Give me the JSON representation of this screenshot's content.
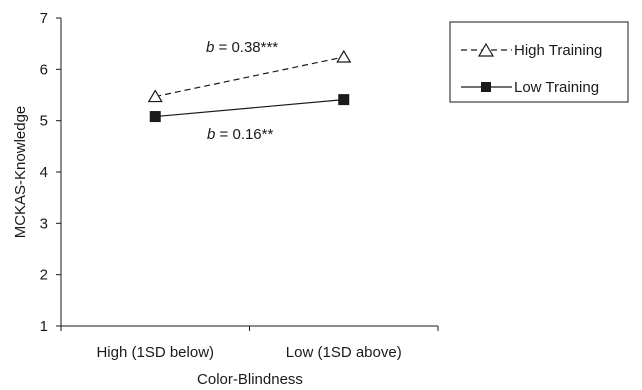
{
  "chart_data": {
    "type": "line",
    "categories": [
      "High (1SD below)",
      "Low (1SD above)"
    ],
    "series": [
      {
        "name": "High Training",
        "values": [
          5.47,
          6.24
        ],
        "line_style": "dashed",
        "marker": "open-triangle",
        "color": "#1a1a1a"
      },
      {
        "name": "Low Training",
        "values": [
          5.08,
          5.41
        ],
        "line_style": "solid",
        "marker": "filled-square",
        "color": "#1a1a1a"
      }
    ],
    "xlabel": "Color-Blindness",
    "ylabel": "MCKAS-Knowledge",
    "ylim": [
      1,
      7
    ],
    "yticks": [
      "1",
      "2",
      "3",
      "4",
      "5",
      "6",
      "7"
    ],
    "grid": false,
    "legend_position": "top-right",
    "annotations": [
      {
        "series": "High Training",
        "prefix": "b",
        "text": " = 0.38***"
      },
      {
        "series": "Low Training",
        "prefix": "b",
        "text": " = 0.16**"
      }
    ]
  }
}
